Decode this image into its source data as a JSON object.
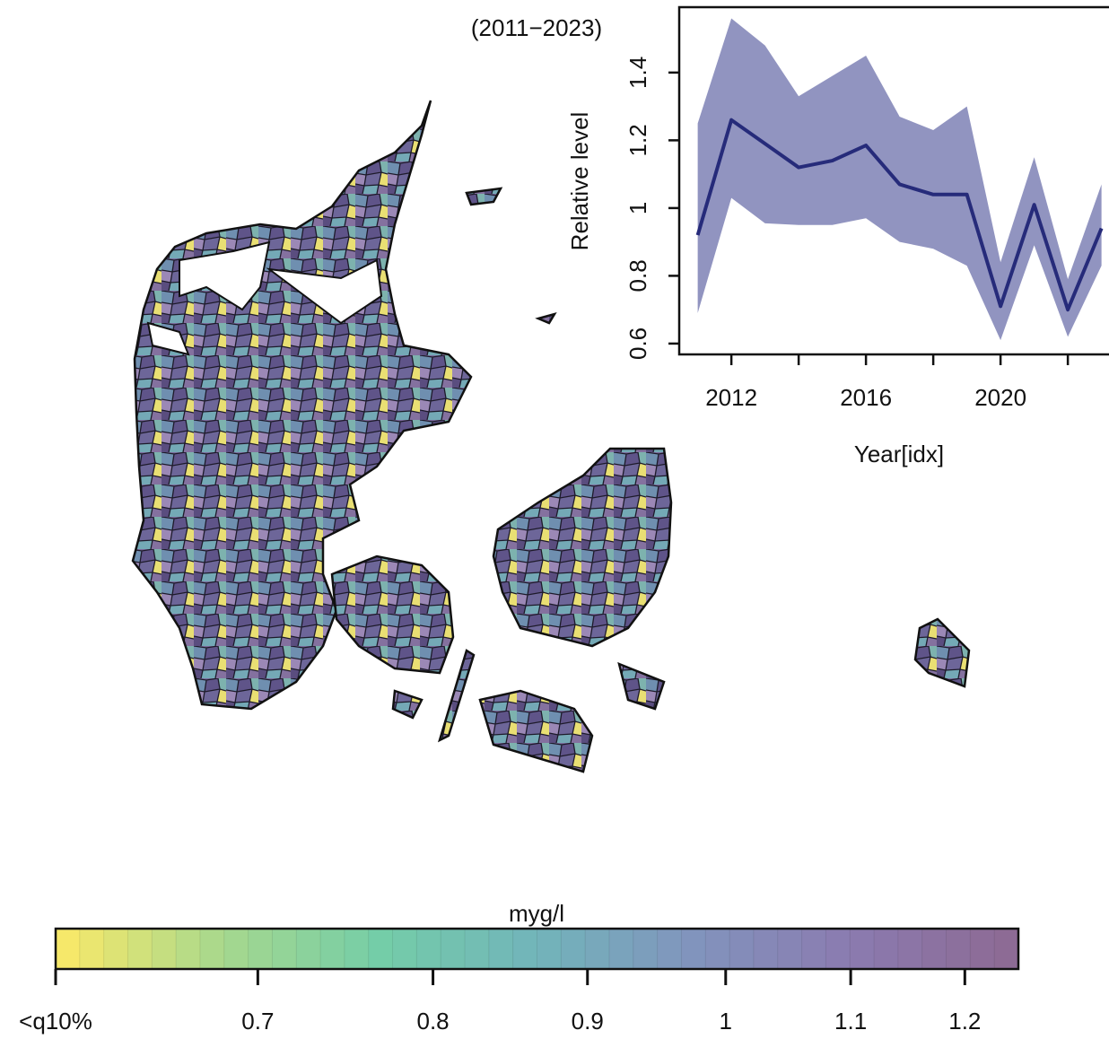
{
  "chart_data": [
    {
      "type": "line",
      "title": "(2011−2023)",
      "x_label": "Year[idx]",
      "y_label": "Relative level",
      "x": [
        2011,
        2012,
        2013,
        2014,
        2015,
        2016,
        2017,
        2018,
        2019,
        2020,
        2021,
        2022,
        2023
      ],
      "values": [
        0.92,
        1.26,
        1.19,
        1.12,
        1.14,
        1.185,
        1.07,
        1.04,
        1.04,
        0.71,
        1.01,
        0.7,
        0.94
      ],
      "lower": [
        0.69,
        1.03,
        0.955,
        0.95,
        0.95,
        0.97,
        0.9,
        0.88,
        0.83,
        0.61,
        0.89,
        0.62,
        0.83
      ],
      "upper": [
        1.25,
        1.56,
        1.48,
        1.33,
        1.39,
        1.45,
        1.27,
        1.23,
        1.3,
        0.84,
        1.15,
        0.79,
        1.07
      ],
      "color": "#262b7a",
      "band_color": "#9194c0",
      "xlim": [
        2010.45,
        2023.25
      ],
      "ylim": [
        0.568,
        1.593
      ],
      "xticks": [
        2012,
        2016,
        2020
      ],
      "x_minor_ticks": [
        2014,
        2018,
        2022
      ],
      "yticks": [
        0.6,
        0.8,
        1.0,
        1.2,
        1.4
      ]
    },
    {
      "type": "colorbar",
      "title": "myg/l",
      "xlim": [
        0.6,
        1.25
      ],
      "log_scale": true,
      "levels": 40,
      "xticks": [
        {
          "value": 0.6,
          "label": "<q10%"
        },
        0.7,
        0.8,
        0.9,
        1,
        1.1,
        1.2
      ],
      "colors": [
        "#f6e86a",
        "#a6d88e",
        "#74cda8",
        "#72b4ba",
        "#8194bd",
        "#8b7bb0",
        "#8d6b95"
      ]
    }
  ]
}
